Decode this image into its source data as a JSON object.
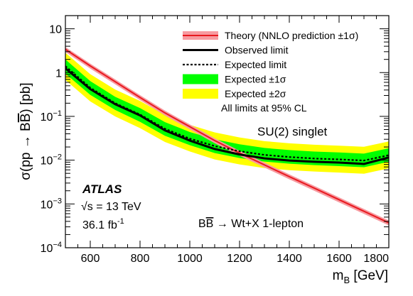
{
  "chart_data": {
    "type": "line",
    "x_label": {
      "main": "m",
      "sub": "B",
      "unit": " [GeV]"
    },
    "y_label": {
      "pre": "σ(pp → B",
      "bar": "B",
      "post": ") [pb]"
    },
    "x_range": [
      500,
      1800
    ],
    "y_range": [
      0.0001,
      20
    ],
    "y_scale": "log",
    "x_ticks": [
      600,
      800,
      1000,
      1200,
      1400,
      1600,
      1800
    ],
    "y_ticks": [
      {
        "value": 0.0001,
        "base": "10",
        "exp": "−4"
      },
      {
        "value": 0.001,
        "base": "10",
        "exp": "−3"
      },
      {
        "value": 0.01,
        "base": "10",
        "exp": "−2"
      },
      {
        "value": 0.1,
        "base": "10",
        "exp": "−1"
      },
      {
        "value": 1,
        "base": "1",
        "exp": ""
      },
      {
        "value": 10,
        "base": "10",
        "exp": ""
      }
    ],
    "x": [
      500,
      600,
      700,
      800,
      900,
      1000,
      1100,
      1200,
      1300,
      1400,
      1500,
      1600,
      1700,
      1800
    ],
    "theory": [
      3.4,
      1.42,
      0.62,
      0.27,
      0.12,
      0.058,
      0.028,
      0.0145,
      0.0078,
      0.0042,
      0.0023,
      0.00125,
      0.00068,
      0.00037
    ],
    "observed": [
      1.25,
      0.42,
      0.19,
      0.105,
      0.048,
      0.028,
      0.018,
      0.0135,
      0.011,
      0.0098,
      0.0092,
      0.0088,
      0.0082,
      0.0115
    ],
    "expected": [
      1.4,
      0.45,
      0.2,
      0.11,
      0.052,
      0.031,
      0.021,
      0.016,
      0.0132,
      0.0118,
      0.0109,
      0.0104,
      0.0098,
      0.013
    ],
    "band_1sigma": {
      "low": [
        0.95,
        0.31,
        0.14,
        0.075,
        0.036,
        0.022,
        0.0145,
        0.0112,
        0.0093,
        0.0083,
        0.0077,
        0.0073,
        0.0069,
        0.0092
      ],
      "high": [
        2.0,
        0.64,
        0.28,
        0.155,
        0.074,
        0.044,
        0.03,
        0.023,
        0.019,
        0.017,
        0.0157,
        0.015,
        0.0141,
        0.0187
      ]
    },
    "band_2sigma": {
      "low": [
        0.68,
        0.22,
        0.1,
        0.054,
        0.026,
        0.0158,
        0.0104,
        0.008,
        0.0066,
        0.0059,
        0.0055,
        0.0052,
        0.0049,
        0.0065
      ],
      "high": [
        2.85,
        0.92,
        0.41,
        0.225,
        0.108,
        0.064,
        0.043,
        0.033,
        0.0272,
        0.0243,
        0.0225,
        0.0214,
        0.0202,
        0.0268
      ]
    },
    "theory_band_frac": 0.13,
    "colors": {
      "theory": "#e8191f",
      "theory_band": "#f79aa0",
      "observed": "#000000",
      "expected": "#000000",
      "band_1sigma": "#00ff00",
      "band_2sigma": "#ffff00"
    },
    "legend": {
      "placement": "top-right",
      "entries": [
        {
          "key": "theory",
          "label": "Theory (NNLO prediction ±1σ)"
        },
        {
          "key": "observed",
          "label": "Observed limit"
        },
        {
          "key": "expected",
          "label": "Expected limit"
        },
        {
          "key": "band_1sigma",
          "label": "Expected ±1σ"
        },
        {
          "key": "band_2sigma",
          "label": "Expected ±2σ"
        }
      ],
      "note": "All limits at 95% CL"
    },
    "annotations": {
      "model": "SU(2) singlet",
      "experiment": "ATLAS",
      "energy": "√s = 13 TeV",
      "lumi_value": "36.1 fb",
      "lumi_exp": "-1",
      "channel_pre": "B",
      "channel_bar": "B",
      "channel_post": " → Wt+X 1-lepton"
    }
  }
}
